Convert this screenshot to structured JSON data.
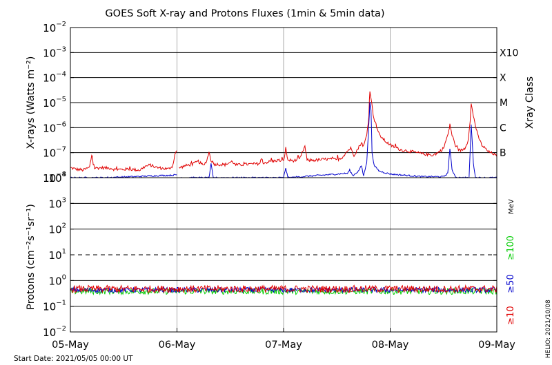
{
  "title": "GOES Soft X-ray and Protons Fluxes   (1min & 5min data)",
  "start_date": "Start Date: 2021/05/05 00:00 UT",
  "credit": "HELIO: 2021/10/08",
  "colors": {
    "red": "#e00000",
    "blue": "#0000cc",
    "green": "#00cc00",
    "grid": "#aaaaaa",
    "axis": "#000000"
  },
  "chart_data": [
    {
      "id": "xray",
      "type": "line",
      "ylabel": "X-rays (Watts m⁻²)",
      "yscale": "log",
      "ylim_exp": [
        -8,
        -2
      ],
      "ytick_labels": [
        {
          "exp": -8,
          "base": "10",
          "sup": "−8"
        },
        {
          "exp": -7,
          "base": "10",
          "sup": "−7"
        },
        {
          "exp": -6,
          "base": "10",
          "sup": "−6"
        },
        {
          "exp": -5,
          "base": "10",
          "sup": "−5"
        },
        {
          "exp": -4,
          "base": "10",
          "sup": "−4"
        },
        {
          "exp": -3,
          "base": "10",
          "sup": "−3"
        },
        {
          "exp": -2,
          "base": "10",
          "sup": "−2"
        }
      ],
      "right_axis_title": "Xray Class",
      "class_labels": [
        {
          "exp": -7,
          "label": "B"
        },
        {
          "exp": -6,
          "label": "C"
        },
        {
          "exp": -5,
          "label": "M"
        },
        {
          "exp": -4,
          "label": "X"
        },
        {
          "exp": -3,
          "label": "X10"
        }
      ],
      "xlim": [
        0,
        4
      ],
      "series": [
        {
          "name": "",
          "color_key": "red",
          "points": [
            [
              0.0,
              2.5e-08
            ],
            [
              0.05,
              2.2e-08
            ],
            [
              0.12,
              2e-08
            ],
            [
              0.18,
              2.6e-08
            ],
            [
              0.2,
              8e-08
            ],
            [
              0.22,
              2.4e-08
            ],
            [
              0.3,
              2.5e-08
            ],
            [
              0.38,
              2.4e-08
            ],
            [
              0.42,
              2.1e-08
            ],
            [
              0.55,
              2.2e-08
            ],
            [
              0.65,
              2e-08
            ],
            [
              0.7,
              2.8e-08
            ],
            [
              0.75,
              3.2e-08
            ],
            [
              0.8,
              2.6e-08
            ],
            [
              0.85,
              2.4e-08
            ],
            [
              0.92,
              2.2e-08
            ],
            [
              0.96,
              3e-08
            ],
            [
              0.98,
              8.5e-08
            ],
            [
              1.0,
              1.2e-07
            ]
          ]
        },
        {
          "name": "",
          "color_key": "red",
          "points": [
            [
              1.02,
              2.5e-08
            ],
            [
              1.08,
              3e-08
            ],
            [
              1.15,
              3.5e-08
            ],
            [
              1.2,
              4.5e-08
            ],
            [
              1.25,
              3e-08
            ],
            [
              1.28,
              5e-08
            ],
            [
              1.3,
              1.05e-07
            ],
            [
              1.32,
              5e-08
            ],
            [
              1.35,
              3.5e-08
            ],
            [
              1.45,
              3.3e-08
            ],
            [
              1.52,
              4.5e-08
            ],
            [
              1.55,
              3.2e-08
            ],
            [
              1.65,
              3.4e-08
            ],
            [
              1.75,
              3.6e-08
            ],
            [
              1.85,
              4.2e-08
            ],
            [
              1.95,
              5e-08
            ],
            [
              2.0,
              4.5e-08
            ],
            [
              2.02,
              1.5e-07
            ],
            [
              2.04,
              5e-08
            ],
            [
              2.1,
              4.8e-08
            ],
            [
              2.15,
              5.5e-08
            ],
            [
              2.2,
              1.8e-07
            ],
            [
              2.22,
              5e-08
            ],
            [
              2.3,
              5e-08
            ],
            [
              2.4,
              5.5e-08
            ],
            [
              2.5,
              5.2e-08
            ],
            [
              2.55,
              6.5e-08
            ],
            [
              2.6,
              1.2e-07
            ],
            [
              2.63,
              1.5e-07
            ],
            [
              2.66,
              8e-08
            ],
            [
              2.7,
              1.5e-07
            ],
            [
              2.73,
              2.5e-07
            ],
            [
              2.75,
              1.8e-07
            ],
            [
              2.78,
              5e-07
            ],
            [
              2.8,
              3e-06
            ],
            [
              2.81,
              3.2e-05
            ],
            [
              2.82,
              1.5e-05
            ],
            [
              2.84,
              3.5e-06
            ],
            [
              2.86,
              1.5e-06
            ],
            [
              2.9,
              5e-07
            ],
            [
              2.95,
              3e-07
            ],
            [
              3.0,
              2e-07
            ],
            [
              3.05,
              1.6e-07
            ],
            [
              3.1,
              1.3e-07
            ],
            [
              3.2,
              1.1e-07
            ],
            [
              3.3,
              9e-08
            ],
            [
              3.4,
              8e-08
            ],
            [
              3.45,
              1e-07
            ],
            [
              3.5,
              1.5e-07
            ],
            [
              3.55,
              7e-07
            ],
            [
              3.56,
              1.4e-06
            ],
            [
              3.58,
              5e-07
            ],
            [
              3.62,
              1.6e-07
            ],
            [
              3.66,
              1.2e-07
            ],
            [
              3.7,
              1.5e-07
            ],
            [
              3.73,
              3e-07
            ],
            [
              3.75,
              2e-06
            ],
            [
              3.76,
              8.5e-06
            ],
            [
              3.78,
              3e-06
            ],
            [
              3.82,
              5e-07
            ],
            [
              3.86,
              2e-07
            ],
            [
              3.92,
              1.1e-07
            ],
            [
              3.97,
              9e-08
            ],
            [
              4.0,
              7e-08
            ]
          ]
        },
        {
          "name": "",
          "color_key": "blue",
          "points": [
            [
              0.0,
              1e-08
            ],
            [
              0.3,
              1e-08
            ],
            [
              0.6,
              1.1e-08
            ],
            [
              0.8,
              1.2e-08
            ],
            [
              0.95,
              1.25e-08
            ],
            [
              1.0,
              1.3e-08
            ]
          ]
        },
        {
          "name": "",
          "color_key": "blue",
          "points": [
            [
              1.02,
              1e-08
            ],
            [
              1.3,
              1e-08
            ],
            [
              1.32,
              3.5e-08
            ],
            [
              1.34,
              1e-08
            ],
            [
              2.0,
              1e-08
            ],
            [
              2.02,
              2.5e-08
            ],
            [
              2.04,
              1e-08
            ],
            [
              2.6,
              1.5e-08
            ],
            [
              2.62,
              2e-08
            ],
            [
              2.65,
              1.2e-08
            ],
            [
              2.7,
              1.8e-08
            ],
            [
              2.73,
              3e-08
            ],
            [
              2.75,
              1.2e-08
            ],
            [
              2.78,
              4e-08
            ],
            [
              2.8,
              1.5e-06
            ],
            [
              2.81,
              1e-05
            ],
            [
              2.82,
              5e-06
            ],
            [
              2.83,
              1e-07
            ],
            [
              2.85,
              3e-08
            ],
            [
              2.9,
              1.8e-08
            ],
            [
              3.0,
              1.4e-08
            ],
            [
              3.3,
              1.1e-08
            ],
            [
              3.5,
              1.1e-08
            ],
            [
              3.54,
              1.5e-08
            ],
            [
              3.56,
              1.5e-07
            ],
            [
              3.58,
              2e-08
            ],
            [
              3.62,
              1e-08
            ],
            [
              3.74,
              1e-08
            ],
            [
              3.76,
              1.4e-06
            ],
            [
              3.78,
              4e-08
            ],
            [
              3.8,
              1e-08
            ],
            [
              4.0,
              1e-08
            ]
          ]
        }
      ]
    },
    {
      "id": "protons",
      "type": "line",
      "ylabel": "Protons (cm⁻²s⁻¹sr⁻¹)",
      "yscale": "log",
      "ylim_exp": [
        -2,
        4
      ],
      "ytick_labels": [
        {
          "exp": -2,
          "base": "10",
          "sup": "−2"
        },
        {
          "exp": -1,
          "base": "10",
          "sup": "−1"
        },
        {
          "exp": 0,
          "base": "10",
          "sup": "0"
        },
        {
          "exp": 1,
          "base": "10",
          "sup": "1"
        },
        {
          "exp": 2,
          "base": "10",
          "sup": "2"
        },
        {
          "exp": 3,
          "base": "10",
          "sup": "3"
        },
        {
          "exp": 4,
          "base": "10",
          "sup": "4"
        }
      ],
      "threshold_exp": 1,
      "right_labels": [
        {
          "text": "MeV",
          "color_key": "axis"
        },
        {
          "text": "≥100",
          "color_key": "green"
        },
        {
          "text": "≥50",
          "color_key": "blue"
        },
        {
          "text": "≥10",
          "color_key": "red"
        }
      ],
      "xlim": [
        0,
        4
      ],
      "series": [
        {
          "name": "",
          "color_key": "green",
          "level": 0.38,
          "noise": 0.12
        },
        {
          "name": "",
          "color_key": "blue",
          "level": 0.43,
          "noise": 0.1
        },
        {
          "name": "",
          "color_key": "red",
          "level": 0.47,
          "noise": 0.14
        }
      ]
    }
  ],
  "x_tick_labels": [
    "05-May",
    "06-May",
    "07-May",
    "08-May",
    "09-May"
  ]
}
